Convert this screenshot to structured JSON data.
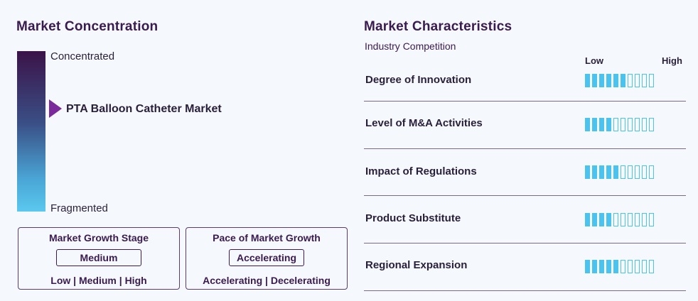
{
  "concentration": {
    "title": "Market Concentration",
    "top_label": "Concentrated",
    "bottom_label": "Fragmented",
    "market_name": "PTA Balloon Catheter Market"
  },
  "growth_stage": {
    "heading": "Market Growth Stage",
    "value": "Medium",
    "options": "Low | Medium | High"
  },
  "growth_pace": {
    "heading": "Pace of Market Growth",
    "value": "Accelerating",
    "options": "Accelerating | Decelerating"
  },
  "characteristics": {
    "title": "Market Characteristics",
    "subtitle": "Industry Competition",
    "scale_low": "Low",
    "scale_high": "High",
    "total_segments": 10,
    "rows": [
      {
        "label": "Degree of Innovation",
        "filled": 6
      },
      {
        "label": "Level of M&A Activities",
        "filled": 4
      },
      {
        "label": "Impact of Regulations",
        "filled": 5
      },
      {
        "label": "Product Substitute",
        "filled": 4
      },
      {
        "label": "Regional Expansion",
        "filled": 5
      }
    ]
  },
  "colors": {
    "accent": "#4ac3ee",
    "heading": "#3a1b4f",
    "marker": "#7a2a9a"
  }
}
